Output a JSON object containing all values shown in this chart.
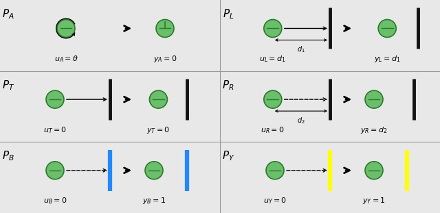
{
  "bg_color": "#e8e8e8",
  "ball_face": "#6abf6a",
  "ball_edge": "#2a7a2a",
  "wall_black": "#111111",
  "wall_blue": "#2288ff",
  "wall_yellow": "#ffff00",
  "figw": 6.4,
  "figh": 3.11,
  "panels": [
    {
      "label": "A",
      "row": 0,
      "col": 0,
      "before": {
        "bx": 0.3,
        "by": 0.6,
        "rotate": true,
        "arrow": "none"
      },
      "after": {
        "bx": 0.75,
        "by": 0.6,
        "line_up": true
      },
      "wall_before": false,
      "wall_after": false,
      "u_text": "$u_A = \\theta$",
      "y_text": "$y_A = 0$",
      "utx": 0.3,
      "ytx": 0.75
    },
    {
      "label": "T",
      "row": 1,
      "col": 0,
      "before": {
        "bx": 0.25,
        "by": 0.6,
        "rotate": false,
        "arrow": "solid"
      },
      "after": {
        "bx": 0.72,
        "by": 0.6
      },
      "wall_before": true,
      "wall_color_before": "black",
      "wbx": 0.5,
      "wall_after": true,
      "wall_color_after": "black",
      "wax": 0.85,
      "after_touching": true,
      "u_text": "$u_T = 0$",
      "y_text": "$y_T = 0$",
      "utx": 0.25,
      "ytx": 0.72
    },
    {
      "label": "B",
      "row": 2,
      "col": 0,
      "before": {
        "bx": 0.25,
        "by": 0.6,
        "rotate": false,
        "arrow": "dashed"
      },
      "after": {
        "bx": 0.7,
        "by": 0.6
      },
      "wall_before": true,
      "wall_color_before": "blue",
      "wbx": 0.5,
      "wall_after": true,
      "wall_color_after": "blue",
      "wax": 0.85,
      "u_text": "$u_B = 0$",
      "y_text": "$y_B = 1$",
      "utx": 0.25,
      "ytx": 0.7
    },
    {
      "label": "L",
      "row": 0,
      "col": 1,
      "before": {
        "bx": 0.24,
        "by": 0.6,
        "rotate": false,
        "arrow": "solid",
        "d_label": "1"
      },
      "after": {
        "bx": 0.76,
        "by": 0.6
      },
      "wall_before": true,
      "wall_color_before": "black",
      "wbx": 0.5,
      "wall_after": true,
      "wall_color_after": "black",
      "wax": 0.9,
      "u_text": "$u_L = d_1$",
      "y_text": "$y_L = d_1$",
      "utx": 0.24,
      "ytx": 0.76
    },
    {
      "label": "R",
      "row": 1,
      "col": 1,
      "before": {
        "bx": 0.24,
        "by": 0.6,
        "rotate": false,
        "arrow": "dashed",
        "d_label": "2"
      },
      "after": {
        "bx": 0.7,
        "by": 0.6
      },
      "wall_before": true,
      "wall_color_before": "black",
      "wbx": 0.5,
      "wall_after": true,
      "wall_color_after": "black",
      "wax": 0.88,
      "u_text": "$u_R = 0$",
      "y_text": "$y_R = d_2$",
      "utx": 0.24,
      "ytx": 0.7
    },
    {
      "label": "Y",
      "row": 2,
      "col": 1,
      "before": {
        "bx": 0.25,
        "by": 0.6,
        "rotate": false,
        "arrow": "dashed"
      },
      "after": {
        "bx": 0.7,
        "by": 0.6
      },
      "wall_before": true,
      "wall_color_before": "yellow",
      "wbx": 0.5,
      "wall_after": true,
      "wall_color_after": "yellow",
      "wax": 0.85,
      "u_text": "$u_Y = 0$",
      "y_text": "$y_Y = 1$",
      "utx": 0.25,
      "ytx": 0.7
    }
  ]
}
